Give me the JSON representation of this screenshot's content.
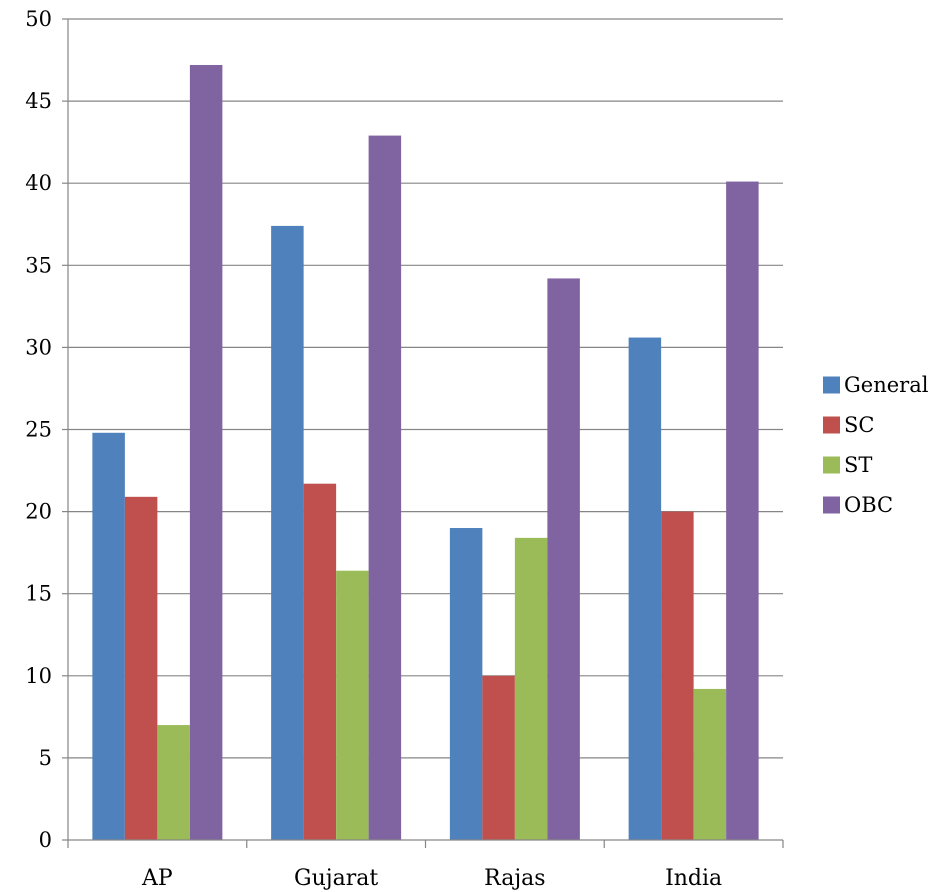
{
  "chart_data": {
    "type": "bar",
    "title": "",
    "xlabel": "",
    "ylabel": "",
    "categories": [
      "AP",
      "Gujarat",
      "Rajas",
      "India"
    ],
    "series": [
      {
        "name": "General",
        "color": "#4F81BD",
        "values": [
          24.8,
          37.4,
          19.0,
          30.6
        ]
      },
      {
        "name": "SC",
        "color": "#C0504D",
        "values": [
          20.9,
          21.7,
          10.0,
          20.0
        ]
      },
      {
        "name": "ST",
        "color": "#9BBB59",
        "values": [
          7.0,
          16.4,
          18.4,
          9.2
        ]
      },
      {
        "name": "OBC",
        "color": "#8064A2",
        "values": [
          47.2,
          42.9,
          34.2,
          40.1
        ]
      }
    ],
    "ylim": [
      0,
      50
    ],
    "yticks": [
      0,
      5,
      10,
      15,
      20,
      25,
      30,
      35,
      40,
      45,
      50
    ],
    "grid": true,
    "legend_position": "right"
  }
}
